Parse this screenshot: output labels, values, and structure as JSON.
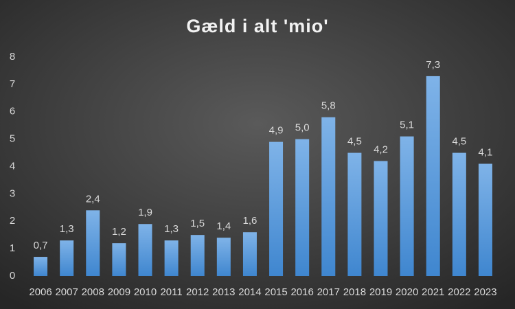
{
  "chart_data": {
    "type": "bar",
    "title": "Gæld i alt 'mio'",
    "categories": [
      "2006",
      "2007",
      "2008",
      "2009",
      "2010",
      "2011",
      "2012",
      "2013",
      "2014",
      "2015",
      "2016",
      "2017",
      "2018",
      "2019",
      "2020",
      "2021",
      "2022",
      "2023"
    ],
    "values": [
      0.7,
      1.3,
      2.4,
      1.2,
      1.9,
      1.3,
      1.5,
      1.4,
      1.6,
      4.9,
      5.0,
      5.8,
      4.5,
      4.2,
      5.1,
      7.3,
      4.5,
      4.1
    ],
    "value_labels": [
      "0,7",
      "1,3",
      "2,4",
      "1,2",
      "1,9",
      "1,3",
      "1,5",
      "1,4",
      "1,6",
      "4,9",
      "5,0",
      "5,8",
      "4,5",
      "4,2",
      "5,1",
      "7,3",
      "4,5",
      "4,1"
    ],
    "color": "#5b9bd5",
    "ylim": [
      0,
      8
    ],
    "yticks": [
      0,
      1,
      2,
      3,
      4,
      5,
      6,
      7,
      8
    ],
    "grid": false
  }
}
